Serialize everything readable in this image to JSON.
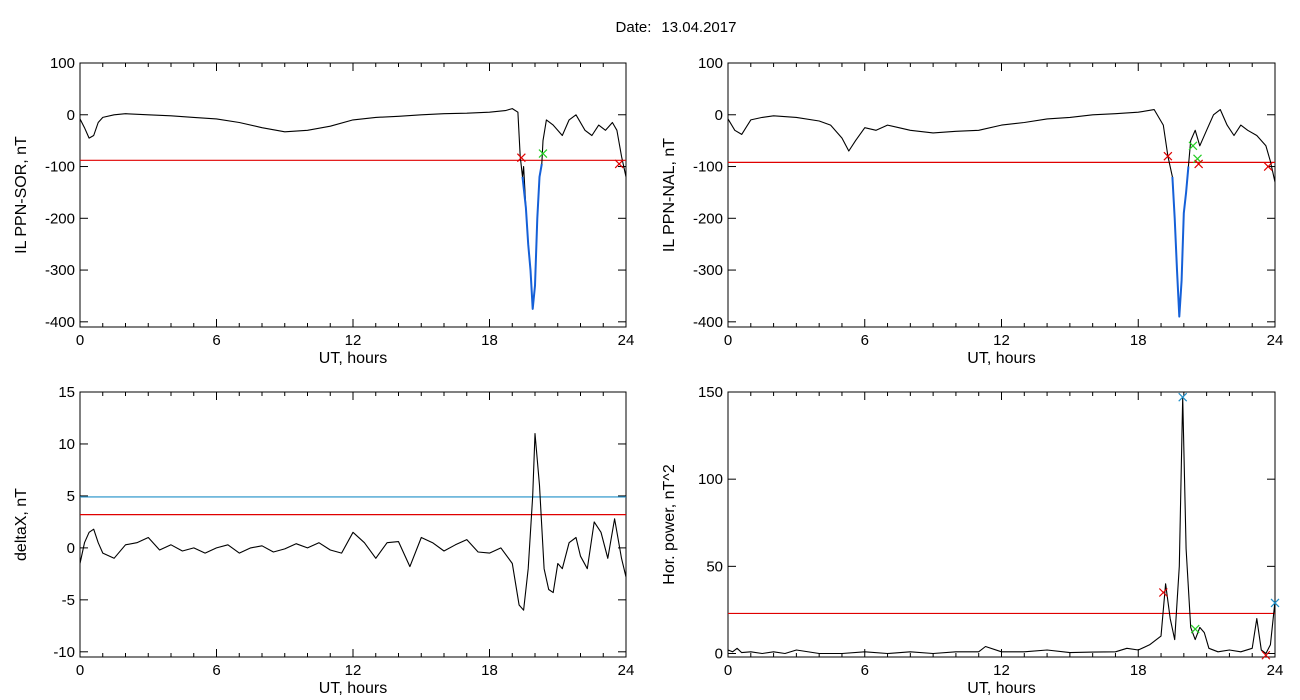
{
  "header": {
    "date_label": "Date:",
    "date_value": "13.04.2017"
  },
  "colors": {
    "series": "#000000",
    "threshold_red": "#e00000",
    "threshold_blue": "#1f8fc8",
    "substorm": "#1560d8",
    "onset_marker": "#e00000",
    "end_marker": "#22cc22",
    "peak_marker": "#1f8fc8"
  },
  "chart_data": [
    {
      "type": "line",
      "id": "il-sor",
      "xlabel": "UT, hours",
      "ylabel": "IL PPN-SOR, nT",
      "xlim": [
        0,
        24
      ],
      "ylim": [
        -410,
        100
      ],
      "xticks": [
        0,
        6,
        12,
        18,
        24
      ],
      "yticks": [
        100,
        0,
        -100,
        -200,
        -300,
        -400
      ],
      "series": [
        {
          "color": "#000000",
          "x": [
            0,
            0.2,
            0.4,
            0.6,
            0.8,
            1,
            1.5,
            2,
            3,
            4,
            5,
            6,
            7,
            8,
            9,
            10,
            11,
            12,
            13,
            14,
            15,
            16,
            17,
            18,
            18.7,
            19.0,
            19.25,
            19.35,
            19.45,
            19.5,
            19.6,
            19.7,
            19.8,
            19.9,
            20.0,
            20.1,
            20.2,
            20.3,
            20.35,
            20.5,
            20.8,
            21.2,
            21.5,
            21.8,
            22.2,
            22.5,
            22.8,
            23.1,
            23.4,
            23.6,
            23.8,
            24
          ],
          "y": [
            -8,
            -25,
            -45,
            -40,
            -15,
            -5,
            0,
            2,
            0,
            -2,
            -5,
            -8,
            -15,
            -25,
            -33,
            -30,
            -22,
            -10,
            -5,
            -3,
            0,
            2,
            3,
            5,
            8,
            12,
            5,
            -80,
            -120,
            -100,
            -180,
            -250,
            -300,
            -375,
            -330,
            -200,
            -120,
            -95,
            -50,
            -10,
            -20,
            -40,
            -10,
            0,
            -30,
            -40,
            -20,
            -30,
            -15,
            -30,
            -80,
            -120
          ]
        },
        {
          "color": "#1560d8",
          "name": "",
          "x": [
            19.45,
            19.6,
            19.7,
            19.8,
            19.9,
            20.0,
            20.1,
            20.2,
            20.3
          ],
          "y": [
            -120,
            -180,
            -250,
            -300,
            -375,
            -330,
            -200,
            -120,
            -95
          ]
        }
      ],
      "hlines": [
        {
          "y": -88,
          "color": "#e00000"
        }
      ],
      "markers": [
        {
          "x": 19.4,
          "y": -83,
          "color": "#e00000"
        },
        {
          "x": 20.35,
          "y": -75,
          "color": "#22cc22"
        },
        {
          "x": 23.7,
          "y": -95,
          "color": "#e00000"
        }
      ]
    },
    {
      "type": "line",
      "id": "il-nal",
      "xlabel": "UT, hours",
      "ylabel": "IL PPN-NAL, nT",
      "xlim": [
        0,
        24
      ],
      "ylim": [
        -410,
        100
      ],
      "xticks": [
        0,
        6,
        12,
        18,
        24
      ],
      "yticks": [
        100,
        0,
        -100,
        -200,
        -300,
        -400
      ],
      "series": [
        {
          "color": "#000000",
          "x": [
            0,
            0.3,
            0.6,
            1,
            1.5,
            2,
            3,
            4,
            4.5,
            5,
            5.3,
            5.6,
            6,
            6.5,
            7,
            7.5,
            8,
            9,
            10,
            11,
            12,
            13,
            14,
            15,
            16,
            17,
            18,
            18.7,
            19.1,
            19.3,
            19.5,
            19.6,
            19.7,
            19.8,
            19.9,
            20.0,
            20.1,
            20.2,
            20.3,
            20.5,
            20.7,
            21,
            21.3,
            21.6,
            21.9,
            22.2,
            22.5,
            22.8,
            23.2,
            23.6,
            23.8,
            24
          ],
          "y": [
            -8,
            -30,
            -38,
            -10,
            -5,
            -2,
            -5,
            -12,
            -20,
            -45,
            -70,
            -50,
            -25,
            -30,
            -20,
            -25,
            -30,
            -35,
            -32,
            -30,
            -20,
            -15,
            -8,
            -5,
            0,
            2,
            5,
            10,
            -20,
            -80,
            -120,
            -200,
            -300,
            -390,
            -320,
            -190,
            -150,
            -100,
            -50,
            -30,
            -60,
            -30,
            0,
            10,
            -20,
            -40,
            -20,
            -30,
            -40,
            -60,
            -90,
            -130
          ]
        },
        {
          "color": "#1560d8",
          "name": "",
          "x": [
            19.5,
            19.6,
            19.7,
            19.8,
            19.9,
            20.0,
            20.1,
            20.2
          ],
          "y": [
            -120,
            -200,
            -300,
            -390,
            -320,
            -190,
            -150,
            -100
          ]
        }
      ],
      "hlines": [
        {
          "y": -92,
          "color": "#e00000"
        }
      ],
      "markers": [
        {
          "x": 19.3,
          "y": -80,
          "color": "#e00000"
        },
        {
          "x": 20.4,
          "y": -60,
          "color": "#22cc22"
        },
        {
          "x": 20.6,
          "y": -85,
          "color": "#22cc22"
        },
        {
          "x": 20.65,
          "y": -95,
          "color": "#e00000"
        },
        {
          "x": 23.7,
          "y": -100,
          "color": "#e00000"
        }
      ]
    },
    {
      "type": "line",
      "id": "delta-x",
      "xlabel": "UT, hours",
      "ylabel": "deltaX, nT",
      "xlim": [
        0,
        24
      ],
      "ylim": [
        -10.5,
        15
      ],
      "xticks": [
        0,
        6,
        12,
        18,
        24
      ],
      "yticks": [
        15,
        10,
        5,
        0,
        -5,
        -10
      ],
      "series": [
        {
          "color": "#000000",
          "x": [
            0,
            0.2,
            0.4,
            0.6,
            0.8,
            1,
            1.5,
            2,
            2.5,
            3,
            3.5,
            4,
            4.5,
            5,
            5.5,
            6,
            6.5,
            7,
            7.5,
            8,
            8.5,
            9,
            9.5,
            10,
            10.5,
            11,
            11.5,
            12,
            12.5,
            13,
            13.5,
            14,
            14.5,
            15,
            15.5,
            16,
            16.5,
            17,
            17.5,
            18,
            18.5,
            19,
            19.3,
            19.5,
            19.7,
            19.9,
            20.0,
            20.2,
            20.4,
            20.6,
            20.8,
            21,
            21.2,
            21.5,
            21.8,
            22,
            22.3,
            22.6,
            22.9,
            23.2,
            23.5,
            23.8,
            24
          ],
          "y": [
            -1.5,
            0.5,
            1.5,
            1.8,
            0.5,
            -0.5,
            -1.0,
            0.3,
            0.5,
            1.0,
            -0.2,
            0.3,
            -0.3,
            0.0,
            -0.5,
            0.0,
            0.3,
            -0.5,
            0.0,
            0.2,
            -0.4,
            -0.1,
            0.4,
            0.0,
            0.5,
            -0.2,
            -0.5,
            1.5,
            0.5,
            -1.0,
            0.5,
            0.6,
            -1.8,
            1.0,
            0.5,
            -0.3,
            0.3,
            0.8,
            -0.4,
            -0.5,
            0.0,
            -1.5,
            -5.5,
            -6.0,
            -2.0,
            5.0,
            11.0,
            6.0,
            -2.0,
            -4.0,
            -4.3,
            -1.5,
            -2.0,
            0.5,
            1.0,
            -0.8,
            -2.0,
            2.5,
            1.5,
            -1.0,
            2.8,
            -1.0,
            -2.8
          ]
        }
      ],
      "hlines": [
        {
          "y": 4.9,
          "color": "#1f8fc8"
        },
        {
          "y": 3.2,
          "color": "#e00000"
        }
      ],
      "markers": []
    },
    {
      "type": "line",
      "id": "hor-power",
      "xlabel": "UT, hours",
      "ylabel": "Hor. power, nT^2",
      "xlim": [
        0,
        24
      ],
      "ylim": [
        -2,
        150
      ],
      "xticks": [
        0,
        6,
        12,
        18,
        24
      ],
      "yticks": [
        150,
        100,
        50,
        0
      ],
      "series": [
        {
          "color": "#000000",
          "x": [
            0,
            0.2,
            0.4,
            0.6,
            1,
            1.5,
            2,
            2.5,
            3,
            4,
            5,
            6,
            7,
            8,
            9,
            10,
            11,
            11.3,
            12,
            13,
            14,
            15,
            16,
            17,
            17.5,
            18,
            18.5,
            19,
            19.2,
            19.4,
            19.6,
            19.8,
            19.95,
            20.1,
            20.3,
            20.5,
            20.7,
            20.9,
            21.1,
            21.5,
            22,
            22.5,
            23,
            23.2,
            23.4,
            23.6,
            23.8,
            24
          ],
          "y": [
            2,
            1,
            3,
            0.5,
            1,
            0,
            1,
            0,
            2,
            0,
            0,
            1,
            0,
            1,
            0,
            1,
            1,
            4,
            1,
            1,
            2,
            0.5,
            0.8,
            1,
            3,
            2,
            5,
            10,
            40,
            20,
            8,
            50,
            147,
            60,
            15,
            8,
            15,
            12,
            3,
            1,
            2,
            1,
            3,
            20,
            2,
            0,
            5,
            30
          ]
        }
      ],
      "hlines": [
        {
          "y": 23,
          "color": "#e00000"
        }
      ],
      "markers": [
        {
          "x": 19.1,
          "y": 35,
          "color": "#e00000"
        },
        {
          "x": 19.95,
          "y": 147,
          "color": "#1f8fc8"
        },
        {
          "x": 20.5,
          "y": 14,
          "color": "#22cc22"
        },
        {
          "x": 23.6,
          "y": -1,
          "color": "#e00000"
        },
        {
          "x": 24.0,
          "y": 29,
          "color": "#1f8fc8"
        }
      ]
    }
  ]
}
